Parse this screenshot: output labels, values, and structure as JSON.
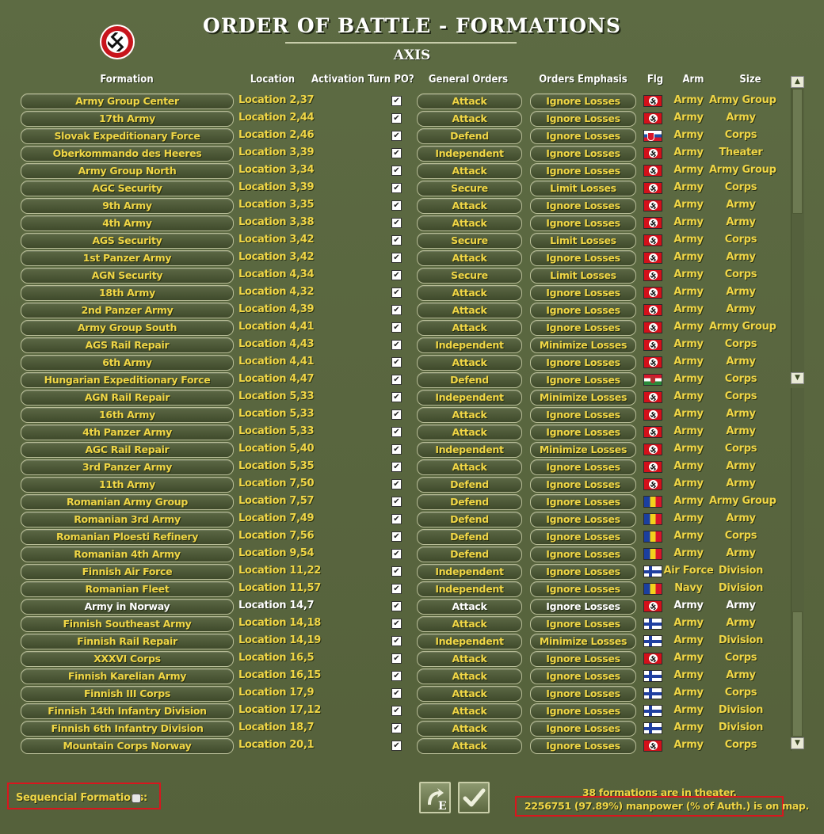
{
  "window": {
    "title": "ORDER OF BATTLE - FORMATIONS",
    "subtitle": "AXIS"
  },
  "columns": {
    "formation": "Formation",
    "location": "Location",
    "activation_turn": "Activation Turn",
    "po": "PO?",
    "general_orders": "General Orders",
    "orders_emphasis": "Orders Emphasis",
    "flag": "Flg",
    "arm": "Arm",
    "size": "Size"
  },
  "rows": [
    {
      "formation": "Army Group Center",
      "location": "Location 2,37",
      "po": true,
      "orders": "Attack",
      "emphasis": "Ignore Losses",
      "flag": "de",
      "arm": "Army",
      "size": "Army Group"
    },
    {
      "formation": "17th Army",
      "location": "Location 2,44",
      "po": true,
      "orders": "Attack",
      "emphasis": "Ignore Losses",
      "flag": "de",
      "arm": "Army",
      "size": "Army"
    },
    {
      "formation": "Slovak Expeditionary Force",
      "location": "Location 2,46",
      "po": true,
      "orders": "Defend",
      "emphasis": "Ignore Losses",
      "flag": "sk",
      "arm": "Army",
      "size": "Corps"
    },
    {
      "formation": "Oberkommando des Heeres",
      "location": "Location 3,39",
      "po": true,
      "orders": "Independent",
      "emphasis": "Ignore Losses",
      "flag": "de",
      "arm": "Army",
      "size": "Theater"
    },
    {
      "formation": "Army Group North",
      "location": "Location 3,34",
      "po": true,
      "orders": "Attack",
      "emphasis": "Ignore Losses",
      "flag": "de",
      "arm": "Army",
      "size": "Army Group"
    },
    {
      "formation": "AGC Security",
      "location": "Location 3,39",
      "po": true,
      "orders": "Secure",
      "emphasis": "Limit Losses",
      "flag": "de",
      "arm": "Army",
      "size": "Corps"
    },
    {
      "formation": "9th Army",
      "location": "Location 3,35",
      "po": true,
      "orders": "Attack",
      "emphasis": "Ignore Losses",
      "flag": "de",
      "arm": "Army",
      "size": "Army"
    },
    {
      "formation": "4th Army",
      "location": "Location 3,38",
      "po": true,
      "orders": "Attack",
      "emphasis": "Ignore Losses",
      "flag": "de",
      "arm": "Army",
      "size": "Army"
    },
    {
      "formation": "AGS Security",
      "location": "Location 3,42",
      "po": true,
      "orders": "Secure",
      "emphasis": "Limit Losses",
      "flag": "de",
      "arm": "Army",
      "size": "Corps"
    },
    {
      "formation": "1st Panzer Army",
      "location": "Location 3,42",
      "po": true,
      "orders": "Attack",
      "emphasis": "Ignore Losses",
      "flag": "de",
      "arm": "Army",
      "size": "Army"
    },
    {
      "formation": "AGN Security",
      "location": "Location 4,34",
      "po": true,
      "orders": "Secure",
      "emphasis": "Limit Losses",
      "flag": "de",
      "arm": "Army",
      "size": "Corps"
    },
    {
      "formation": "18th Army",
      "location": "Location 4,32",
      "po": true,
      "orders": "Attack",
      "emphasis": "Ignore Losses",
      "flag": "de",
      "arm": "Army",
      "size": "Army"
    },
    {
      "formation": "2nd Panzer Army",
      "location": "Location 4,39",
      "po": true,
      "orders": "Attack",
      "emphasis": "Ignore Losses",
      "flag": "de",
      "arm": "Army",
      "size": "Army"
    },
    {
      "formation": "Army Group South",
      "location": "Location 4,41",
      "po": true,
      "orders": "Attack",
      "emphasis": "Ignore Losses",
      "flag": "de",
      "arm": "Army",
      "size": "Army Group"
    },
    {
      "formation": "AGS Rail Repair",
      "location": "Location 4,43",
      "po": true,
      "orders": "Independent",
      "emphasis": "Minimize Losses",
      "flag": "de",
      "arm": "Army",
      "size": "Corps"
    },
    {
      "formation": "6th Army",
      "location": "Location 4,41",
      "po": true,
      "orders": "Attack",
      "emphasis": "Ignore Losses",
      "flag": "de",
      "arm": "Army",
      "size": "Army"
    },
    {
      "formation": "Hungarian Expeditionary Force",
      "location": "Location 4,47",
      "po": true,
      "orders": "Defend",
      "emphasis": "Ignore Losses",
      "flag": "hu",
      "arm": "Army",
      "size": "Corps"
    },
    {
      "formation": "AGN Rail Repair",
      "location": "Location 5,33",
      "po": true,
      "orders": "Independent",
      "emphasis": "Minimize Losses",
      "flag": "de",
      "arm": "Army",
      "size": "Corps"
    },
    {
      "formation": "16th Army",
      "location": "Location 5,33",
      "po": true,
      "orders": "Attack",
      "emphasis": "Ignore Losses",
      "flag": "de",
      "arm": "Army",
      "size": "Army"
    },
    {
      "formation": "4th Panzer Army",
      "location": "Location 5,33",
      "po": true,
      "orders": "Attack",
      "emphasis": "Ignore Losses",
      "flag": "de",
      "arm": "Army",
      "size": "Army"
    },
    {
      "formation": "AGC Rail Repair",
      "location": "Location 5,40",
      "po": true,
      "orders": "Independent",
      "emphasis": "Minimize Losses",
      "flag": "de",
      "arm": "Army",
      "size": "Corps"
    },
    {
      "formation": "3rd Panzer Army",
      "location": "Location 5,35",
      "po": true,
      "orders": "Attack",
      "emphasis": "Ignore Losses",
      "flag": "de",
      "arm": "Army",
      "size": "Army"
    },
    {
      "formation": "11th Army",
      "location": "Location 7,50",
      "po": true,
      "orders": "Defend",
      "emphasis": "Ignore Losses",
      "flag": "de",
      "arm": "Army",
      "size": "Army"
    },
    {
      "formation": "Romanian Army Group",
      "location": "Location 7,57",
      "po": true,
      "orders": "Defend",
      "emphasis": "Ignore Losses",
      "flag": "ro",
      "arm": "Army",
      "size": "Army Group"
    },
    {
      "formation": "Romanian 3rd Army",
      "location": "Location 7,49",
      "po": true,
      "orders": "Defend",
      "emphasis": "Ignore Losses",
      "flag": "ro",
      "arm": "Army",
      "size": "Army"
    },
    {
      "formation": "Romanian Ploesti Refinery",
      "location": "Location 7,56",
      "po": true,
      "orders": "Defend",
      "emphasis": "Ignore Losses",
      "flag": "ro",
      "arm": "Army",
      "size": "Corps"
    },
    {
      "formation": "Romanian 4th Army",
      "location": "Location 9,54",
      "po": true,
      "orders": "Defend",
      "emphasis": "Ignore Losses",
      "flag": "ro",
      "arm": "Army",
      "size": "Army"
    },
    {
      "formation": "Finnish Air Force",
      "location": "Location 11,22",
      "po": true,
      "orders": "Independent",
      "emphasis": "Ignore Losses",
      "flag": "fi",
      "arm": "Air Force",
      "size": "Division"
    },
    {
      "formation": "Romanian Fleet",
      "location": "Location 11,57",
      "po": true,
      "orders": "Independent",
      "emphasis": "Ignore Losses",
      "flag": "ro",
      "arm": "Navy",
      "size": "Division"
    },
    {
      "formation": "Army in Norway",
      "location": "Location 14,7",
      "po": true,
      "orders": "Attack",
      "emphasis": "Ignore Losses",
      "flag": "de",
      "arm": "Army",
      "size": "Army",
      "highlight": true
    },
    {
      "formation": "Finnish Southeast Army",
      "location": "Location 14,18",
      "po": true,
      "orders": "Attack",
      "emphasis": "Ignore Losses",
      "flag": "fi",
      "arm": "Army",
      "size": "Army"
    },
    {
      "formation": "Finnish Rail Repair",
      "location": "Location 14,19",
      "po": true,
      "orders": "Independent",
      "emphasis": "Minimize Losses",
      "flag": "fi",
      "arm": "Army",
      "size": "Division"
    },
    {
      "formation": "XXXVI Corps",
      "location": "Location 16,5",
      "po": true,
      "orders": "Attack",
      "emphasis": "Ignore Losses",
      "flag": "de",
      "arm": "Army",
      "size": "Corps"
    },
    {
      "formation": "Finnish Karelian Army",
      "location": "Location 16,15",
      "po": true,
      "orders": "Attack",
      "emphasis": "Ignore Losses",
      "flag": "fi",
      "arm": "Army",
      "size": "Army"
    },
    {
      "formation": "Finnish III Corps",
      "location": "Location 17,9",
      "po": true,
      "orders": "Attack",
      "emphasis": "Ignore Losses",
      "flag": "fi",
      "arm": "Army",
      "size": "Corps"
    },
    {
      "formation": "Finnish 14th Infantry Division",
      "location": "Location 17,12",
      "po": true,
      "orders": "Attack",
      "emphasis": "Ignore Losses",
      "flag": "fi",
      "arm": "Army",
      "size": "Division"
    },
    {
      "formation": "Finnish 6th Infantry Division",
      "location": "Location 18,7",
      "po": true,
      "orders": "Attack",
      "emphasis": "Ignore Losses",
      "flag": "fi",
      "arm": "Army",
      "size": "Division"
    },
    {
      "formation": "Mountain Corps Norway",
      "location": "Location 20,1",
      "po": true,
      "orders": "Attack",
      "emphasis": "Ignore Losses",
      "flag": "de",
      "arm": "Army",
      "size": "Corps"
    }
  ],
  "footer": {
    "sequencial_label": "Sequencial Formations:",
    "sequencial_checked": false,
    "formations_count": "38 formations are in theater.",
    "manpower": "2256751 (97.89%) manpower (% of Auth.) is on map.",
    "edit_button_glyph": "E",
    "ok_button_glyph": "✓"
  },
  "colors": {
    "accent_text": "#f0d646",
    "background": "#56633e",
    "highlight_box": "#d9161e"
  },
  "icons": {
    "emblem": "swastika-emblem-icon",
    "scroll_up": "scroll-up-arrow-icon",
    "scroll_down": "scroll-down-arrow-icon",
    "edit": "edit-icon",
    "confirm": "check-icon"
  }
}
